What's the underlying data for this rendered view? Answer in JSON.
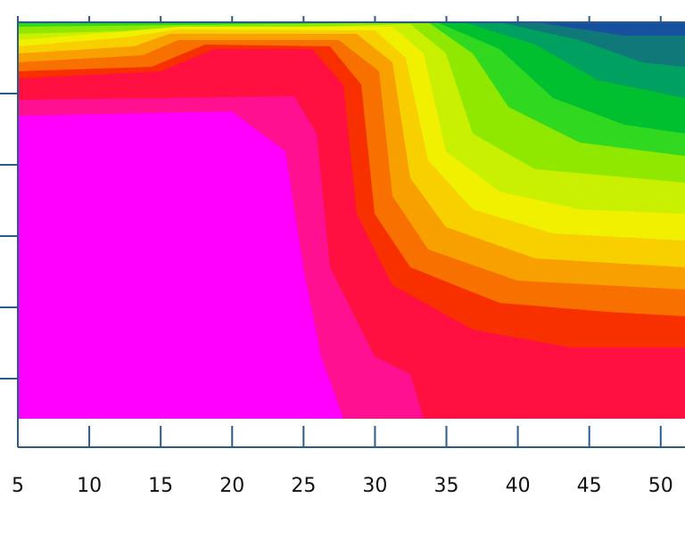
{
  "chart_data": {
    "type": "contour",
    "xlim": [
      5,
      51.7
    ],
    "xticks": [
      5,
      10,
      15,
      20,
      25,
      30,
      35,
      40,
      45,
      50
    ]
  }
}
